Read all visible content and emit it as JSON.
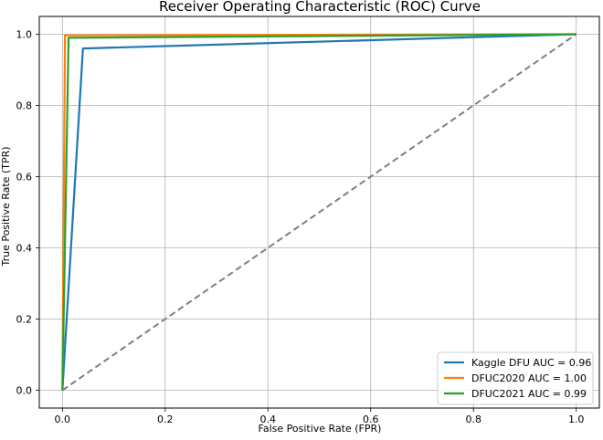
{
  "chart_data": {
    "type": "line",
    "title": "Receiver Operating Characteristic (ROC) Curve",
    "xlabel": "False Positive Rate (FPR)",
    "ylabel": "True Positive Rate (TPR)",
    "xlim": [
      -0.045,
      1.045
    ],
    "ylim": [
      -0.05,
      1.05
    ],
    "xticks": [
      0.0,
      0.2,
      0.4,
      0.6,
      0.8,
      1.0
    ],
    "xtick_labels": [
      "0.0",
      "0.2",
      "0.4",
      "0.6",
      "0.8",
      "1.0"
    ],
    "yticks": [
      0.0,
      0.2,
      0.4,
      0.6,
      0.8,
      1.0
    ],
    "ytick_labels": [
      "0.0",
      "0.2",
      "0.4",
      "0.6",
      "0.8",
      "1.0"
    ],
    "grid": true,
    "legend_position": "lower-right",
    "series": [
      {
        "name": "Kaggle DFU AUC = 0.96",
        "color": "#1f77b4",
        "x": [
          0.0,
          0.04,
          1.0
        ],
        "y": [
          0.0,
          0.96,
          1.0
        ]
      },
      {
        "name": "DFUC2020 AUC = 1.00",
        "color": "#ff7f0e",
        "x": [
          0.0,
          0.005,
          1.0
        ],
        "y": [
          0.0,
          0.997,
          1.0
        ]
      },
      {
        "name": "DFUC2021 AUC = 0.99",
        "color": "#2ca02c",
        "x": [
          0.0,
          0.012,
          1.0
        ],
        "y": [
          0.0,
          0.99,
          1.0
        ]
      }
    ],
    "reference_line": {
      "name": "chance-diagonal",
      "color": "#7f7f7f",
      "style": "dashed",
      "x": [
        0.0,
        1.0
      ],
      "y": [
        0.0,
        1.0
      ]
    }
  }
}
